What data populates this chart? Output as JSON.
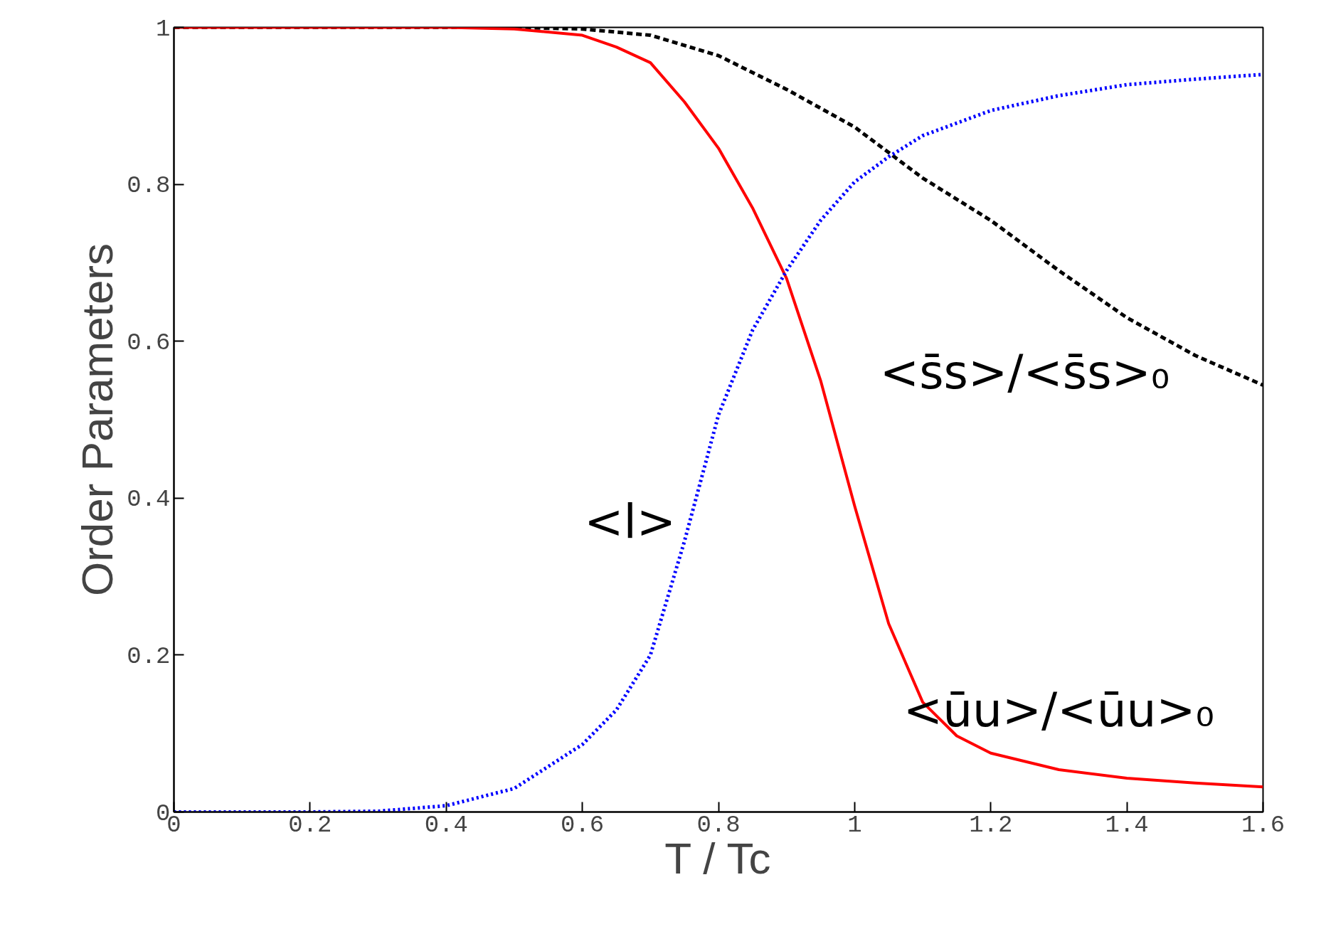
{
  "chart_data": {
    "type": "line",
    "xlabel": "T / Tc",
    "ylabel": "Order Parameters",
    "xlim": [
      0,
      1.6
    ],
    "ylim": [
      0,
      1
    ],
    "xticks": [
      0,
      0.2,
      0.4,
      0.6,
      0.8,
      1,
      1.2,
      1.4,
      1.6
    ],
    "yticks": [
      0,
      0.2,
      0.4,
      0.6,
      0.8,
      1
    ],
    "grid": false,
    "series": [
      {
        "name": "<s̄s>/<s̄s>₀",
        "color": "#000000",
        "line_style": "dashed",
        "x": [
          0,
          0.2,
          0.4,
          0.5,
          0.6,
          0.7,
          0.8,
          0.9,
          1.0,
          1.1,
          1.2,
          1.3,
          1.4,
          1.5,
          1.6
        ],
        "values": [
          1,
          1,
          1,
          1,
          0.998,
          0.99,
          0.964,
          0.921,
          0.873,
          0.808,
          0.754,
          0.69,
          0.63,
          0.582,
          0.544
        ]
      },
      {
        "name": "<ūu>/<ūu>₀",
        "color": "#ff0000",
        "line_style": "solid",
        "x": [
          0,
          0.2,
          0.4,
          0.5,
          0.6,
          0.65,
          0.7,
          0.75,
          0.8,
          0.85,
          0.9,
          0.95,
          1.0,
          1.05,
          1.1,
          1.15,
          1.2,
          1.3,
          1.4,
          1.5,
          1.6
        ],
        "values": [
          1,
          1,
          1,
          0.998,
          0.99,
          0.975,
          0.955,
          0.905,
          0.846,
          0.77,
          0.68,
          0.55,
          0.39,
          0.24,
          0.14,
          0.097,
          0.075,
          0.054,
          0.043,
          0.037,
          0.032
        ]
      },
      {
        "name": "<l>",
        "color": "#0000ff",
        "line_style": "dotted",
        "x": [
          0,
          0.2,
          0.3,
          0.4,
          0.5,
          0.6,
          0.65,
          0.7,
          0.75,
          0.8,
          0.85,
          0.9,
          0.95,
          1.0,
          1.05,
          1.1,
          1.2,
          1.3,
          1.4,
          1.5,
          1.6
        ],
        "values": [
          0,
          0,
          0.001,
          0.008,
          0.03,
          0.086,
          0.13,
          0.2,
          0.345,
          0.506,
          0.614,
          0.69,
          0.754,
          0.803,
          0.835,
          0.862,
          0.894,
          0.913,
          0.927,
          0.934,
          0.94
        ]
      }
    ]
  }
}
